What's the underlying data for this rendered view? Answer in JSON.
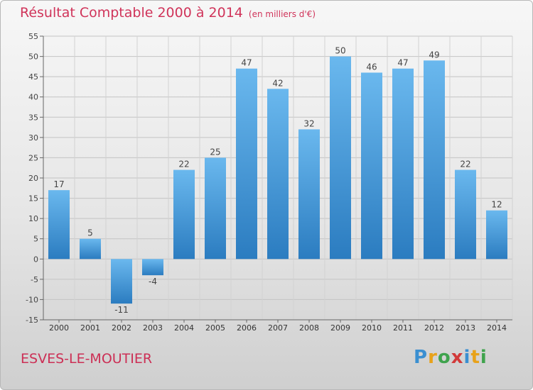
{
  "header": {
    "title": "Résultat Comptable 2000 à 2014",
    "subtitle": "(en milliers d'€)"
  },
  "footer": {
    "town": "ESVES-LE-MOUTIER",
    "logo": "Proxiti",
    "logo_letters": [
      {
        "ch": "P",
        "color": "#3a8fd1"
      },
      {
        "ch": "r",
        "color": "#e8a21a"
      },
      {
        "ch": "o",
        "color": "#3fa34d"
      },
      {
        "ch": "x",
        "color": "#d23a3a"
      },
      {
        "ch": "i",
        "color": "#3a8fd1"
      },
      {
        "ch": "t",
        "color": "#e8a21a"
      },
      {
        "ch": "i",
        "color": "#3fa34d"
      }
    ]
  },
  "chart_data": {
    "type": "bar",
    "title": "Résultat Comptable 2000 à 2014",
    "subtitle": "(en milliers d'€)",
    "xlabel": "",
    "ylabel": "",
    "categories": [
      "2000",
      "2001",
      "2002",
      "2003",
      "2004",
      "2005",
      "2006",
      "2007",
      "2008",
      "2009",
      "2010",
      "2011",
      "2012",
      "2013",
      "2014"
    ],
    "values": [
      17,
      5,
      -11,
      -4,
      22,
      25,
      47,
      42,
      32,
      50,
      46,
      47,
      49,
      22,
      12
    ],
    "ylim": [
      -15,
      55
    ],
    "yticks": [
      -15,
      -10,
      -5,
      0,
      5,
      10,
      15,
      20,
      25,
      30,
      35,
      40,
      45,
      50,
      55
    ],
    "grid": true,
    "bar_color_light": "#6ab8ee",
    "bar_color_dark": "#2b7cc0"
  }
}
